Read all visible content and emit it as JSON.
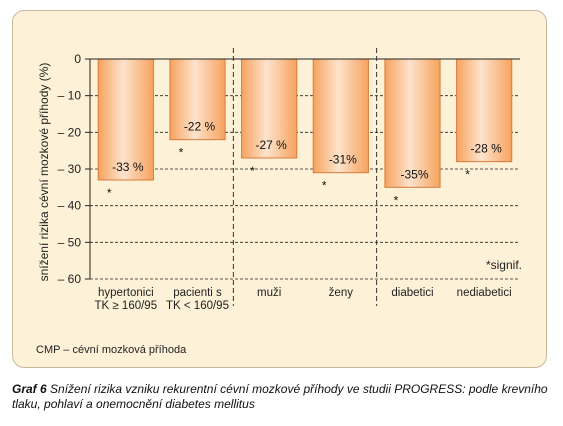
{
  "chart_data": {
    "type": "bar",
    "ylabel": "snížení rizika cévní mozkové příhody (%)",
    "ylim": [
      -60,
      0
    ],
    "yticks": [
      0,
      -10,
      -20,
      -30,
      -40,
      -50,
      -60
    ],
    "grid": "dashed horizontal",
    "categories": [
      [
        "hypertonici",
        "TK ≥ 160/95"
      ],
      [
        "pacienti s",
        "TK < 160/95"
      ],
      [
        "muži"
      ],
      [
        "ženy"
      ],
      [
        "diabetici"
      ],
      [
        "nediabetici"
      ]
    ],
    "values": [
      -33,
      -22,
      -27,
      -31,
      -35,
      -28
    ],
    "value_labels": [
      "-33 %",
      "-22 %",
      "-27 %",
      "-31%",
      "-35%",
      "-28 %"
    ],
    "significant_marker": "*",
    "significance_note": "*signif.",
    "bar_color": "#f6a35e",
    "bar_gradient_light": "#fde3cc",
    "bar_border": "#d97b3a"
  },
  "footnote": "CMP – cévní mozková příhoda",
  "caption": {
    "label": "Graf 6",
    "text": "Snížení rizika vzniku rekurentní cévní mozkové příhody ve studii PROGRESS: podle krevního tlaku, pohlaví a onemocnění diabetes mellitus"
  }
}
